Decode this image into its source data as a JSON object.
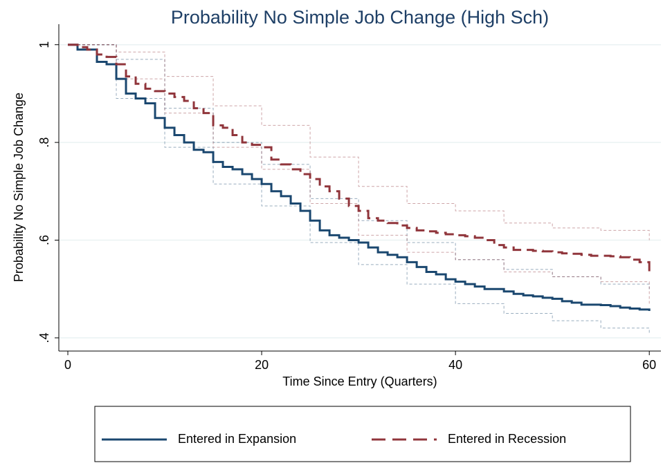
{
  "chart_data": {
    "type": "step",
    "title": "Probability No Simple Job Change (High Sch)",
    "x_label": "Time Since Entry (Quarters)",
    "y_label": "Probability No Simple Job Change",
    "xlim": [
      -0.93,
      61.2
    ],
    "ylim": [
      0.373,
      1.042
    ],
    "xticks": [
      0,
      20,
      40,
      60
    ],
    "yticks": [
      {
        "value": 0.4,
        "label": ".4"
      },
      {
        "value": 0.6,
        "label": ".6"
      },
      {
        "value": 0.8,
        "label": ".8"
      },
      1
    ],
    "grid": true,
    "x": [
      0,
      1,
      2,
      3,
      4,
      5,
      6,
      7,
      8,
      9,
      10,
      11,
      12,
      13,
      14,
      15,
      16,
      17,
      18,
      19,
      20,
      21,
      22,
      23,
      24,
      25,
      26,
      27,
      28,
      29,
      30,
      31,
      32,
      33,
      34,
      35,
      36,
      37,
      38,
      39,
      40,
      41,
      42,
      43,
      44,
      45,
      46,
      47,
      48,
      49,
      50,
      51,
      52,
      53,
      54,
      55,
      56,
      57,
      58,
      59,
      60
    ],
    "ci_x": [
      0,
      5,
      10,
      15,
      20,
      25,
      30,
      35,
      40,
      45,
      50,
      55,
      60
    ],
    "series": [
      {
        "name": "Entered in Expansion",
        "color": "#1a476f",
        "dash": false,
        "values": [
          1,
          0.99,
          0.99,
          0.965,
          0.96,
          0.93,
          0.9,
          0.89,
          0.88,
          0.85,
          0.83,
          0.815,
          0.8,
          0.785,
          0.78,
          0.76,
          0.75,
          0.745,
          0.735,
          0.725,
          0.715,
          0.7,
          0.69,
          0.675,
          0.66,
          0.64,
          0.62,
          0.61,
          0.605,
          0.6,
          0.595,
          0.585,
          0.575,
          0.57,
          0.565,
          0.555,
          0.545,
          0.535,
          0.53,
          0.52,
          0.515,
          0.51,
          0.505,
          0.5,
          0.5,
          0.495,
          0.49,
          0.487,
          0.485,
          0.482,
          0.48,
          0.475,
          0.472,
          0.468,
          0.468,
          0.467,
          0.465,
          0.462,
          0.46,
          0.458,
          0.455
        ],
        "ci_upper": [
          1,
          0.97,
          0.87,
          0.8,
          0.755,
          0.685,
          0.64,
          0.595,
          0.56,
          0.54,
          0.525,
          0.51,
          0.5
        ],
        "ci_lower": [
          1,
          0.89,
          0.79,
          0.715,
          0.67,
          0.595,
          0.55,
          0.51,
          0.47,
          0.45,
          0.435,
          0.42,
          0.41
        ]
      },
      {
        "name": "Entered in Recession",
        "color": "#90353b",
        "dash": true,
        "values": [
          1,
          0.995,
          0.99,
          0.98,
          0.975,
          0.96,
          0.935,
          0.92,
          0.91,
          0.905,
          0.9,
          0.893,
          0.885,
          0.87,
          0.86,
          0.835,
          0.83,
          0.815,
          0.8,
          0.795,
          0.79,
          0.765,
          0.755,
          0.745,
          0.735,
          0.725,
          0.71,
          0.7,
          0.685,
          0.67,
          0.66,
          0.645,
          0.64,
          0.635,
          0.63,
          0.625,
          0.62,
          0.618,
          0.615,
          0.612,
          0.61,
          0.608,
          0.605,
          0.6,
          0.59,
          0.585,
          0.58,
          0.58,
          0.578,
          0.577,
          0.575,
          0.573,
          0.572,
          0.57,
          0.568,
          0.568,
          0.567,
          0.565,
          0.56,
          0.555,
          0.53
        ],
        "ci_upper": [
          1,
          0.985,
          0.935,
          0.875,
          0.835,
          0.77,
          0.71,
          0.675,
          0.66,
          0.635,
          0.625,
          0.62,
          0.6
        ],
        "ci_lower": [
          1,
          0.93,
          0.86,
          0.79,
          0.745,
          0.675,
          0.61,
          0.575,
          0.56,
          0.535,
          0.525,
          0.515,
          0.47
        ]
      }
    ]
  }
}
